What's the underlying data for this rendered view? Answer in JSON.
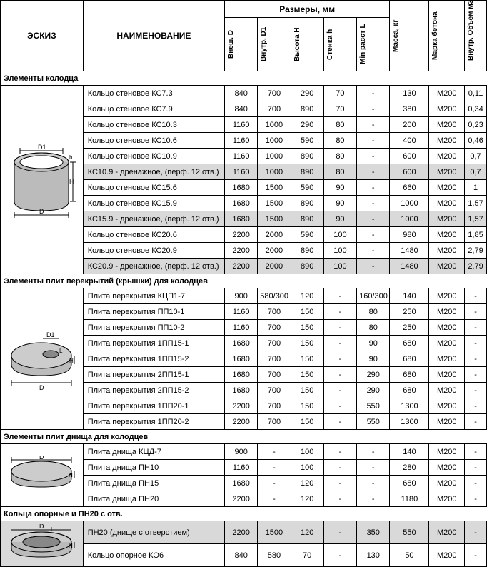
{
  "headers": {
    "sketch": "ЭСКИЗ",
    "name": "НАИМЕНОВАНИЕ",
    "dimensions": "Размеры, мм",
    "mass": "Масса, кг",
    "concrete": "Марка бетона",
    "volume": "Внутр. Объем м3",
    "cols": {
      "d_outer": "Внеш. D",
      "d_inner": "Внутр. D1",
      "height": "Высота H",
      "wall": "Стенка h",
      "min_dist": "Min расст L"
    }
  },
  "sections": [
    {
      "title": "Элементы колодца",
      "sketch_type": "ring",
      "rows": [
        {
          "name": "Кольцо стеновое КС7.3",
          "d": "840",
          "d1": "700",
          "h": "290",
          "wall": "70",
          "l": "-",
          "mass": "130",
          "conc": "М200",
          "vol": "0,11",
          "hl": false
        },
        {
          "name": "Кольцо стеновое КС7.9",
          "d": "840",
          "d1": "700",
          "h": "890",
          "wall": "70",
          "l": "-",
          "mass": "380",
          "conc": "М200",
          "vol": "0,34",
          "hl": false
        },
        {
          "name": "Кольцо стеновое КС10.3",
          "d": "1160",
          "d1": "1000",
          "h": "290",
          "wall": "80",
          "l": "-",
          "mass": "200",
          "conc": "М200",
          "vol": "0,23",
          "hl": false
        },
        {
          "name": "Кольцо стеновое КС10.6",
          "d": "1160",
          "d1": "1000",
          "h": "590",
          "wall": "80",
          "l": "-",
          "mass": "400",
          "conc": "М200",
          "vol": "0,46",
          "hl": false
        },
        {
          "name": "Кольцо стеновое КС10.9",
          "d": "1160",
          "d1": "1000",
          "h": "890",
          "wall": "80",
          "l": "-",
          "mass": "600",
          "conc": "М200",
          "vol": "0,7",
          "hl": false
        },
        {
          "name": "КС10.9 - дренажное, (перф. 12 отв.)",
          "d": "1160",
          "d1": "1000",
          "h": "890",
          "wall": "80",
          "l": "-",
          "mass": "600",
          "conc": "М200",
          "vol": "0,7",
          "hl": true
        },
        {
          "name": "Кольцо стеновое КС15.6",
          "d": "1680",
          "d1": "1500",
          "h": "590",
          "wall": "90",
          "l": "-",
          "mass": "660",
          "conc": "М200",
          "vol": "1",
          "hl": false
        },
        {
          "name": "Кольцо стеновое КС15.9",
          "d": "1680",
          "d1": "1500",
          "h": "890",
          "wall": "90",
          "l": "-",
          "mass": "1000",
          "conc": "М200",
          "vol": "1,57",
          "hl": false
        },
        {
          "name": "КС15.9 - дренажное, (перф. 12 отв.)",
          "d": "1680",
          "d1": "1500",
          "h": "890",
          "wall": "90",
          "l": "-",
          "mass": "1000",
          "conc": "М200",
          "vol": "1,57",
          "hl": true
        },
        {
          "name": "Кольцо стеновое КС20.6",
          "d": "2200",
          "d1": "2000",
          "h": "590",
          "wall": "100",
          "l": "-",
          "mass": "980",
          "conc": "М200",
          "vol": "1,85",
          "hl": false
        },
        {
          "name": "Кольцо стеновое КС20.9",
          "d": "2200",
          "d1": "2000",
          "h": "890",
          "wall": "100",
          "l": "-",
          "mass": "1480",
          "conc": "М200",
          "vol": "2,79",
          "hl": false
        },
        {
          "name": "КС20.9 - дренажное, (перф. 12 отв.)",
          "d": "2200",
          "d1": "2000",
          "h": "890",
          "wall": "100",
          "l": "-",
          "mass": "1480",
          "conc": "М200",
          "vol": "2,79",
          "hl": true
        }
      ]
    },
    {
      "title": "Элементы плит перекрытий (крышки) для колодцев",
      "sketch_type": "lid",
      "rows": [
        {
          "name": "Плита перекрытия КЦП1-7",
          "d": "900",
          "d1": "580/300",
          "h": "120",
          "wall": "-",
          "l": "160/300",
          "mass": "140",
          "conc": "М200",
          "vol": "-",
          "hl": false
        },
        {
          "name": "Плита перекрытия ПП10-1",
          "d": "1160",
          "d1": "700",
          "h": "150",
          "wall": "-",
          "l": "80",
          "mass": "250",
          "conc": "М200",
          "vol": "-",
          "hl": false
        },
        {
          "name": "Плита перекрытия ПП10-2",
          "d": "1160",
          "d1": "700",
          "h": "150",
          "wall": "-",
          "l": "80",
          "mass": "250",
          "conc": "М200",
          "vol": "-",
          "hl": false
        },
        {
          "name": "Плита перекрытия 1ПП15-1",
          "d": "1680",
          "d1": "700",
          "h": "150",
          "wall": "-",
          "l": "90",
          "mass": "680",
          "conc": "М200",
          "vol": "-",
          "hl": false
        },
        {
          "name": "Плита перекрытия 1ПП15-2",
          "d": "1680",
          "d1": "700",
          "h": "150",
          "wall": "-",
          "l": "90",
          "mass": "680",
          "conc": "М200",
          "vol": "-",
          "hl": false
        },
        {
          "name": "Плита перекрытия 2ПП15-1",
          "d": "1680",
          "d1": "700",
          "h": "150",
          "wall": "-",
          "l": "290",
          "mass": "680",
          "conc": "М200",
          "vol": "-",
          "hl": false
        },
        {
          "name": "Плита перекрытия 2ПП15-2",
          "d": "1680",
          "d1": "700",
          "h": "150",
          "wall": "-",
          "l": "290",
          "mass": "680",
          "conc": "М200",
          "vol": "-",
          "hl": false
        },
        {
          "name": "Плита перекрытия 1ПП20-1",
          "d": "2200",
          "d1": "700",
          "h": "150",
          "wall": "-",
          "l": "550",
          "mass": "1300",
          "conc": "М200",
          "vol": "-",
          "hl": false
        },
        {
          "name": "Плита перекрытия 1ПП20-2",
          "d": "2200",
          "d1": "700",
          "h": "150",
          "wall": "-",
          "l": "550",
          "mass": "1300",
          "conc": "М200",
          "vol": "-",
          "hl": false
        }
      ]
    },
    {
      "title": "Элементы плит днища для колодцев",
      "sketch_type": "base",
      "rows": [
        {
          "name": "Плита днища КЦД-7",
          "d": "900",
          "d1": "-",
          "h": "100",
          "wall": "-",
          "l": "-",
          "mass": "140",
          "conc": "М200",
          "vol": "-",
          "hl": false
        },
        {
          "name": "Плита днища ПН10",
          "d": "1160",
          "d1": "-",
          "h": "100",
          "wall": "-",
          "l": "-",
          "mass": "280",
          "conc": "М200",
          "vol": "-",
          "hl": false
        },
        {
          "name": "Плита днища ПН15",
          "d": "1680",
          "d1": "-",
          "h": "120",
          "wall": "-",
          "l": "-",
          "mass": "680",
          "conc": "М200",
          "vol": "-",
          "hl": false
        },
        {
          "name": "Плита днища ПН20",
          "d": "2200",
          "d1": "-",
          "h": "120",
          "wall": "-",
          "l": "-",
          "mass": "1180",
          "conc": "М200",
          "vol": "-",
          "hl": false
        }
      ]
    },
    {
      "title": "Кольца опорные и ПН20 с отв.",
      "sketch_type": "support",
      "rows": [
        {
          "name": "ПН20 (днище с отверстием)",
          "d": "2200",
          "d1": "1500",
          "h": "120",
          "wall": "-",
          "l": "350",
          "mass": "550",
          "conc": "М200",
          "vol": "-",
          "hl": true
        },
        {
          "name": "Кольцо опорное КО6",
          "d": "840",
          "d1": "580",
          "h": "70",
          "wall": "-",
          "l": "130",
          "mass": "50",
          "conc": "М200",
          "vol": "-",
          "hl": false
        }
      ]
    }
  ]
}
